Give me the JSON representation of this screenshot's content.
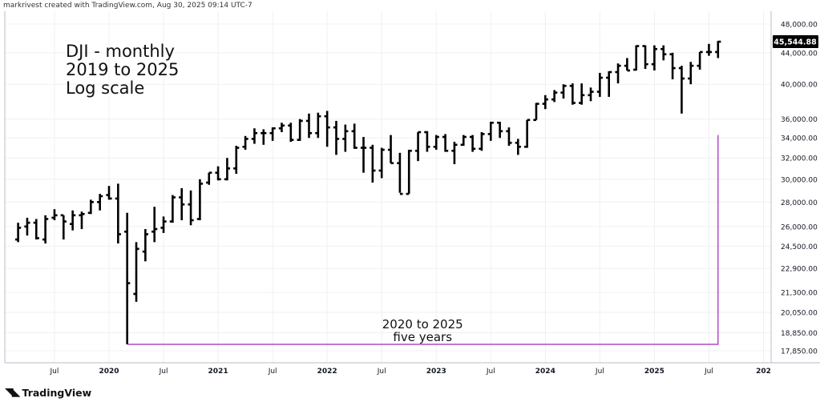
{
  "header": "markrivest created with TradingView.com, Aug 30, 2025 09:14 UTC-7",
  "footer_brand": "TradingView",
  "colors": {
    "bars": "#000000",
    "annotation": "#b04cc4",
    "grid": "#eef0f3",
    "axis": "#b8bcc4"
  },
  "chart_data": {
    "type": "ohlc",
    "title_lines": [
      "DJI - monthly",
      "2019 to 2025",
      "Log scale"
    ],
    "log_scale": true,
    "grid": true,
    "last_price": "45,544.88",
    "y_ticks": [
      {
        "v": 48000,
        "label": "48,000.00"
      },
      {
        "v": 44000,
        "label": "44,000.00"
      },
      {
        "v": 40000,
        "label": "40,000.00"
      },
      {
        "v": 36000,
        "label": "36,000.00"
      },
      {
        "v": 34000,
        "label": "34,000.00"
      },
      {
        "v": 32000,
        "label": "32,000.00"
      },
      {
        "v": 30000,
        "label": "30,000.00"
      },
      {
        "v": 28000,
        "label": "28,000.00"
      },
      {
        "v": 26000,
        "label": "26,000.00"
      },
      {
        "v": 24500,
        "label": "24,500.00"
      },
      {
        "v": 22900,
        "label": "22,900.00"
      },
      {
        "v": 21300,
        "label": "21,300.00"
      },
      {
        "v": 20050,
        "label": "20,050.00"
      },
      {
        "v": 18850,
        "label": "18,850.00"
      },
      {
        "v": 17850,
        "label": "17,850.00"
      }
    ],
    "x_ticks": [
      {
        "m": "2019-07",
        "label": "Jul"
      },
      {
        "m": "2020-01",
        "label": "2020"
      },
      {
        "m": "2020-07",
        "label": "Jul"
      },
      {
        "m": "2021-01",
        "label": "2021"
      },
      {
        "m": "2021-07",
        "label": "Jul"
      },
      {
        "m": "2022-01",
        "label": "2022"
      },
      {
        "m": "2022-07",
        "label": "Jul"
      },
      {
        "m": "2023-01",
        "label": "2023"
      },
      {
        "m": "2023-07",
        "label": "Jul"
      },
      {
        "m": "2024-01",
        "label": "2024"
      },
      {
        "m": "2024-07",
        "label": "Jul"
      },
      {
        "m": "2025-01",
        "label": "2025"
      },
      {
        "m": "2025-07",
        "label": "Jul"
      },
      {
        "m": "2026-01",
        "label": "202"
      }
    ],
    "bars": [
      {
        "m": "2019-03",
        "o": 25000,
        "h": 26300,
        "l": 24800,
        "c": 25900
      },
      {
        "m": "2019-04",
        "o": 26000,
        "h": 26700,
        "l": 25300,
        "c": 26300
      },
      {
        "m": "2019-05",
        "o": 26300,
        "h": 26600,
        "l": 25000,
        "c": 25100
      },
      {
        "m": "2019-06",
        "o": 25000,
        "h": 26900,
        "l": 24700,
        "c": 26600
      },
      {
        "m": "2019-07",
        "o": 26700,
        "h": 27400,
        "l": 26500,
        "c": 26900
      },
      {
        "m": "2019-08",
        "o": 26900,
        "h": 26900,
        "l": 25000,
        "c": 26400
      },
      {
        "m": "2019-09",
        "o": 26200,
        "h": 27300,
        "l": 25700,
        "c": 26900
      },
      {
        "m": "2019-10",
        "o": 26900,
        "h": 27200,
        "l": 25800,
        "c": 27000
      },
      {
        "m": "2019-11",
        "o": 27100,
        "h": 28200,
        "l": 27000,
        "c": 28000
      },
      {
        "m": "2019-12",
        "o": 28000,
        "h": 28700,
        "l": 27300,
        "c": 28500
      },
      {
        "m": "2020-01",
        "o": 28600,
        "h": 29400,
        "l": 28200,
        "c": 28300
      },
      {
        "m": "2020-02",
        "o": 28300,
        "h": 29600,
        "l": 24700,
        "c": 25400
      },
      {
        "m": "2020-03",
        "o": 25600,
        "h": 27100,
        "l": 18200,
        "c": 21900
      },
      {
        "m": "2020-04",
        "o": 21200,
        "h": 24800,
        "l": 20700,
        "c": 24300
      },
      {
        "m": "2020-05",
        "o": 24100,
        "h": 25800,
        "l": 23400,
        "c": 25400
      },
      {
        "m": "2020-06",
        "o": 25600,
        "h": 27600,
        "l": 24800,
        "c": 25800
      },
      {
        "m": "2020-07",
        "o": 25900,
        "h": 26800,
        "l": 25500,
        "c": 26400
      },
      {
        "m": "2020-08",
        "o": 26400,
        "h": 28600,
        "l": 26300,
        "c": 28400
      },
      {
        "m": "2020-09",
        "o": 28400,
        "h": 29200,
        "l": 26500,
        "c": 27800
      },
      {
        "m": "2020-10",
        "o": 27800,
        "h": 29000,
        "l": 26100,
        "c": 26500
      },
      {
        "m": "2020-11",
        "o": 26600,
        "h": 30000,
        "l": 26500,
        "c": 29600
      },
      {
        "m": "2020-12",
        "o": 29700,
        "h": 30600,
        "l": 29500,
        "c": 30600
      },
      {
        "m": "2021-01",
        "o": 30600,
        "h": 31200,
        "l": 29900,
        "c": 30000
      },
      {
        "m": "2021-02",
        "o": 30000,
        "h": 32000,
        "l": 29900,
        "c": 31000
      },
      {
        "m": "2021-03",
        "o": 31000,
        "h": 33200,
        "l": 30500,
        "c": 33000
      },
      {
        "m": "2021-04",
        "o": 33100,
        "h": 34200,
        "l": 32800,
        "c": 33900
      },
      {
        "m": "2021-05",
        "o": 33900,
        "h": 35000,
        "l": 33400,
        "c": 34500
      },
      {
        "m": "2021-06",
        "o": 34500,
        "h": 34900,
        "l": 33300,
        "c": 34500
      },
      {
        "m": "2021-07",
        "o": 34500,
        "h": 35100,
        "l": 33700,
        "c": 35000
      },
      {
        "m": "2021-08",
        "o": 35000,
        "h": 35600,
        "l": 34600,
        "c": 35300
      },
      {
        "m": "2021-09",
        "o": 35300,
        "h": 35600,
        "l": 33600,
        "c": 33800
      },
      {
        "m": "2021-10",
        "o": 33800,
        "h": 36000,
        "l": 33700,
        "c": 35800
      },
      {
        "m": "2021-11",
        "o": 35800,
        "h": 36600,
        "l": 34000,
        "c": 34500
      },
      {
        "m": "2021-12",
        "o": 34500,
        "h": 36700,
        "l": 34000,
        "c": 36300
      },
      {
        "m": "2022-01",
        "o": 36300,
        "h": 36900,
        "l": 33100,
        "c": 35100
      },
      {
        "m": "2022-02",
        "o": 35100,
        "h": 35800,
        "l": 32300,
        "c": 33900
      },
      {
        "m": "2022-03",
        "o": 33900,
        "h": 35400,
        "l": 32600,
        "c": 34700
      },
      {
        "m": "2022-04",
        "o": 34700,
        "h": 35500,
        "l": 32900,
        "c": 33000
      },
      {
        "m": "2022-05",
        "o": 33000,
        "h": 34100,
        "l": 30600,
        "c": 33000
      },
      {
        "m": "2022-06",
        "o": 33000,
        "h": 33300,
        "l": 29700,
        "c": 30800
      },
      {
        "m": "2022-07",
        "o": 30800,
        "h": 33000,
        "l": 30100,
        "c": 32800
      },
      {
        "m": "2022-08",
        "o": 32800,
        "h": 34300,
        "l": 31500,
        "c": 31500
      },
      {
        "m": "2022-09",
        "o": 31500,
        "h": 32500,
        "l": 28800,
        "c": 28700
      },
      {
        "m": "2022-10",
        "o": 28700,
        "h": 32800,
        "l": 28700,
        "c": 32700
      },
      {
        "m": "2022-11",
        "o": 32700,
        "h": 34600,
        "l": 31700,
        "c": 34600
      },
      {
        "m": "2022-12",
        "o": 34600,
        "h": 34700,
        "l": 32600,
        "c": 33100
      },
      {
        "m": "2023-01",
        "o": 33100,
        "h": 34300,
        "l": 32800,
        "c": 34100
      },
      {
        "m": "2023-02",
        "o": 34100,
        "h": 34400,
        "l": 32600,
        "c": 32700
      },
      {
        "m": "2023-03",
        "o": 32700,
        "h": 33600,
        "l": 31400,
        "c": 33300
      },
      {
        "m": "2023-04",
        "o": 33300,
        "h": 34300,
        "l": 33200,
        "c": 34100
      },
      {
        "m": "2023-05",
        "o": 34100,
        "h": 34300,
        "l": 32600,
        "c": 32900
      },
      {
        "m": "2023-06",
        "o": 32900,
        "h": 34600,
        "l": 32700,
        "c": 34400
      },
      {
        "m": "2023-07",
        "o": 34400,
        "h": 35700,
        "l": 33700,
        "c": 35600
      },
      {
        "m": "2023-08",
        "o": 35600,
        "h": 35700,
        "l": 34000,
        "c": 34700
      },
      {
        "m": "2023-09",
        "o": 34700,
        "h": 35100,
        "l": 33200,
        "c": 33500
      },
      {
        "m": "2023-10",
        "o": 33500,
        "h": 33900,
        "l": 32300,
        "c": 33100
      },
      {
        "m": "2023-11",
        "o": 33100,
        "h": 35900,
        "l": 33000,
        "c": 35900
      },
      {
        "m": "2023-12",
        "o": 35900,
        "h": 37800,
        "l": 35900,
        "c": 37700
      },
      {
        "m": "2024-01",
        "o": 37700,
        "h": 38700,
        "l": 37100,
        "c": 38200
      },
      {
        "m": "2024-02",
        "o": 38200,
        "h": 39300,
        "l": 37900,
        "c": 39000
      },
      {
        "m": "2024-03",
        "o": 39000,
        "h": 40000,
        "l": 38300,
        "c": 39800
      },
      {
        "m": "2024-04",
        "o": 39800,
        "h": 40100,
        "l": 37600,
        "c": 37800
      },
      {
        "m": "2024-05",
        "o": 37800,
        "h": 40100,
        "l": 37600,
        "c": 38700
      },
      {
        "m": "2024-06",
        "o": 38700,
        "h": 39600,
        "l": 38000,
        "c": 39100
      },
      {
        "m": "2024-07",
        "o": 39100,
        "h": 41400,
        "l": 38500,
        "c": 40800
      },
      {
        "m": "2024-08",
        "o": 40800,
        "h": 41600,
        "l": 38500,
        "c": 41500
      },
      {
        "m": "2024-09",
        "o": 41500,
        "h": 42600,
        "l": 40100,
        "c": 42300
      },
      {
        "m": "2024-10",
        "o": 42300,
        "h": 43300,
        "l": 41700,
        "c": 41700
      },
      {
        "m": "2024-11",
        "o": 41800,
        "h": 45000,
        "l": 41700,
        "c": 44900
      },
      {
        "m": "2024-12",
        "o": 44900,
        "h": 45000,
        "l": 41900,
        "c": 42500
      },
      {
        "m": "2025-01",
        "o": 42500,
        "h": 45000,
        "l": 41700,
        "c": 44500
      },
      {
        "m": "2025-02",
        "o": 44500,
        "h": 45000,
        "l": 43000,
        "c": 43800
      },
      {
        "m": "2025-03",
        "o": 43800,
        "h": 44000,
        "l": 40600,
        "c": 42000
      },
      {
        "m": "2025-04",
        "o": 42000,
        "h": 42300,
        "l": 36600,
        "c": 40700
      },
      {
        "m": "2025-05",
        "o": 40700,
        "h": 42800,
        "l": 40000,
        "c": 42300
      },
      {
        "m": "2025-06",
        "o": 42300,
        "h": 44100,
        "l": 41800,
        "c": 44100
      },
      {
        "m": "2025-07",
        "o": 44100,
        "h": 45200,
        "l": 43600,
        "c": 44100
      },
      {
        "m": "2025-08",
        "o": 44100,
        "h": 45600,
        "l": 43300,
        "c": 45500
      }
    ],
    "annotation": {
      "lines": [
        "2020 to 2025",
        "five years"
      ],
      "from": {
        "m": "2020-03",
        "v": 18200
      },
      "to": {
        "m": "2025-08",
        "v": 34300
      }
    }
  }
}
